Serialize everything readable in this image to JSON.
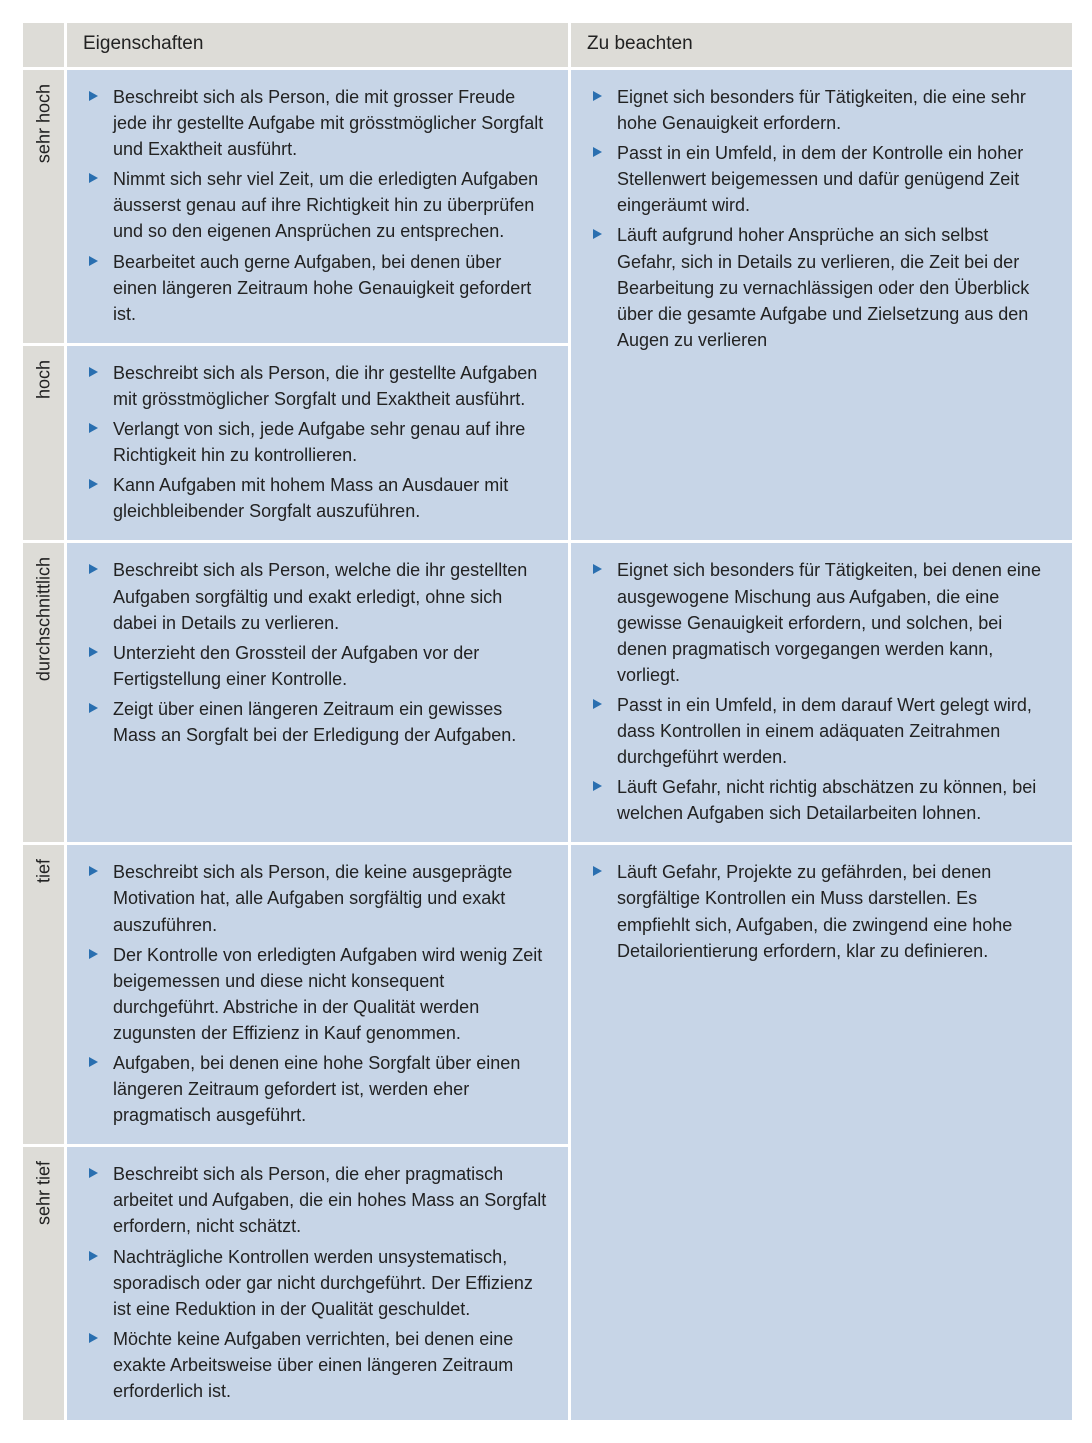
{
  "colors": {
    "row_label_bg": "#dddcd7",
    "cell_bg": "#c7d5e7",
    "bullet_color": "#2a6fb0",
    "border_color": "#ffffff",
    "text_color": "#222222"
  },
  "typography": {
    "font_family": "Arial, Helvetica, sans-serif",
    "header_fontsize_pt": 14,
    "body_fontsize_pt": 13,
    "line_height": 1.45
  },
  "headers": {
    "eigenschaften": "Eigenschaften",
    "zu_beachten": "Zu beachten"
  },
  "rows": {
    "sehr_hoch": {
      "label": "sehr hoch",
      "eigenschaften": [
        "Beschreibt sich als Person, die mit grosser Freude jede ihr gestellte Aufgabe mit grösstmöglicher Sorgfalt und Exaktheit ausführt.",
        "Nimmt sich sehr viel Zeit, um die erledigten Aufgaben äusserst genau auf ihre Richtigkeit hin zu überprüfen und so den eigenen Ansprüchen zu entsprechen.",
        "Bearbeitet auch gerne Aufgaben, bei denen über einen längeren Zeitraum hohe Genauigkeit gefordert ist."
      ]
    },
    "hoch": {
      "label": "hoch",
      "eigenschaften": [
        "Beschreibt sich als Person, die ihr gestellte Aufgaben mit grösstmöglicher Sorgfalt und Exaktheit ausführt.",
        "Verlangt von sich, jede Aufgabe sehr genau auf ihre Richtigkeit hin zu kontrollieren.",
        "Kann Aufgaben mit hohem Mass an Ausdauer mit gleichbleibender Sorgfalt auszuführen."
      ]
    },
    "sehr_hoch_hoch_zu_beachten": [
      "Eignet sich besonders für Tätigkeiten, die eine sehr hohe Genauigkeit erfordern.",
      "Passt in ein Umfeld, in dem der Kontrolle ein hoher Stellenwert beigemessen und dafür genügend Zeit eingeräumt wird.",
      "Läuft aufgrund hoher Ansprüche an sich selbst Gefahr, sich in Details zu verlieren, die Zeit bei der Bearbeitung zu vernachlässigen oder den Überblick über die gesamte Aufgabe und Zielsetzung aus den Augen zu verlieren"
    ],
    "durchschnittlich": {
      "label": "durchschnittlich",
      "eigenschaften": [
        "Beschreibt sich als Person, welche die ihr gestellten Aufgaben sorgfältig und exakt erledigt, ohne sich dabei in Details zu verlieren.",
        "Unterzieht den Grossteil der Aufgaben vor der Fertigstellung einer Kontrolle.",
        "Zeigt über einen längeren Zeitraum ein gewisses Mass an Sorgfalt bei der Erledigung der Aufgaben."
      ],
      "zu_beachten": [
        "Eignet sich besonders für Tätigkeiten, bei denen eine ausgewogene Mischung aus Aufgaben, die eine gewisse Genauigkeit erfordern, und solchen, bei denen pragmatisch vorgegangen werden kann, vorliegt.",
        "Passt in ein Umfeld, in dem darauf Wert gelegt wird, dass Kontrollen in einem adäquaten Zeitrahmen durchgeführt werden.",
        "Läuft Gefahr, nicht richtig abschätzen zu können, bei welchen Aufgaben sich Detailarbeiten lohnen."
      ]
    },
    "tief": {
      "label": "tief",
      "eigenschaften": [
        "Beschreibt sich als Person, die keine ausgeprägte Motivation hat, alle Aufgaben sorgfältig und exakt auszuführen.",
        "Der Kontrolle von erledigten Aufgaben wird wenig Zeit beigemessen und diese nicht konsequent durchgeführt. Abstriche in der Qualität werden zugunsten der Effizienz in Kauf genommen.",
        "Aufgaben, bei denen eine hohe Sorgfalt über einen längeren Zeitraum gefordert ist, werden eher pragmatisch ausgeführt."
      ]
    },
    "sehr_tief": {
      "label": "sehr tief",
      "eigenschaften": [
        "Beschreibt sich als Person, die eher pragmatisch arbeitet und Aufgaben, die ein hohes Mass an Sorgfalt erfordern, nicht schätzt.",
        "Nachträgliche Kontrollen werden unsystematisch, sporadisch oder gar nicht durchgeführt. Der Effizienz ist eine Reduktion in der Qualität geschuldet.",
        "Möchte keine Aufgaben verrichten, bei denen eine exakte Arbeitsweise über einen längeren Zeitraum erforderlich ist."
      ]
    },
    "tief_sehr_tief_zu_beachten": [
      "Läuft Gefahr, Projekte zu gefährden, bei denen sorgfältige Kontrollen ein Muss darstellen. Es empfiehlt sich, Aufgaben, die zwingend eine hohe Detailorientierung erfordern, klar zu definieren."
    ]
  }
}
